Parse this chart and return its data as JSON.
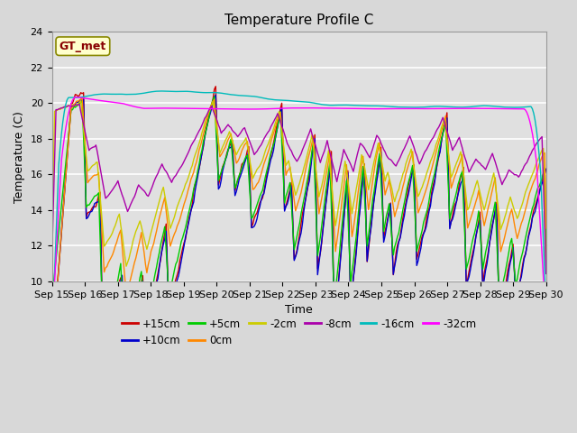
{
  "title": "Temperature Profile C",
  "xlabel": "Time",
  "ylabel": "Temperature (C)",
  "ylim": [
    10,
    24
  ],
  "yticks": [
    10,
    12,
    14,
    16,
    18,
    20,
    22,
    24
  ],
  "date_labels": [
    "Sep 15",
    "Sep 16",
    "Sep 17",
    "Sep 18",
    "Sep 19",
    "Sep 20",
    "Sep 21",
    "Sep 22",
    "Sep 23",
    "Sep 24",
    "Sep 25",
    "Sep 26",
    "Sep 27",
    "Sep 28",
    "Sep 29",
    "Sep 30"
  ],
  "series_labels": [
    "+15cm",
    "+10cm",
    "+5cm",
    "0cm",
    "-2cm",
    "-8cm",
    "-16cm",
    "-32cm"
  ],
  "series_colors": [
    "#cc0000",
    "#0000cc",
    "#00cc00",
    "#ff8800",
    "#cccc00",
    "#aa00aa",
    "#00bbbb",
    "#ff00ff"
  ],
  "annotation_text": "GT_met",
  "annotation_color": "#880000",
  "annotation_bg": "#ffffcc",
  "plot_bg": "#e0e0e0",
  "fig_bg": "#d8d8d8",
  "title_fontsize": 11,
  "axis_fontsize": 9,
  "tick_fontsize": 8,
  "legend_fontsize": 8.5
}
